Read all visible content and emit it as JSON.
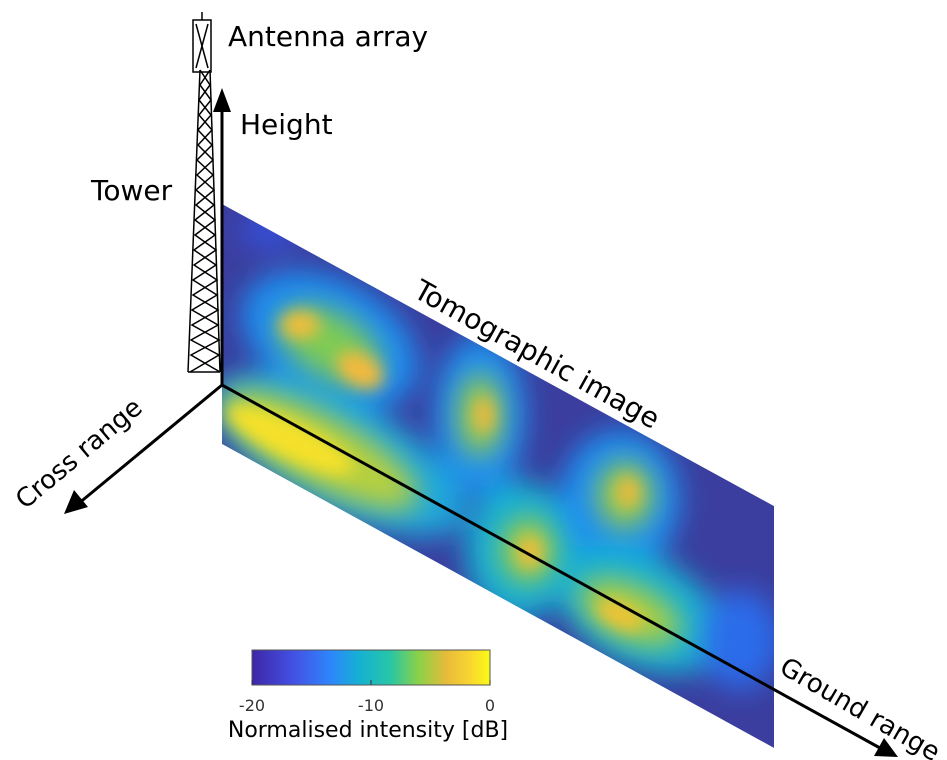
{
  "labels": {
    "antenna": "Antenna array",
    "height": "Height",
    "tower": "Tower",
    "tomographic": "Tomographic image",
    "cross_range": "Cross range",
    "ground_range": "Ground range"
  },
  "colorbar": {
    "title": "Normalised intensity [dB]",
    "ticks": [
      "-20",
      "-10",
      "0"
    ],
    "colors": [
      "#3e26a8",
      "#4352e6",
      "#2d86fb",
      "#15b1d3",
      "#26c6a7",
      "#8bd147",
      "#e8bb3a",
      "#f9d72f",
      "#f9fb15"
    ]
  },
  "image_colors": {
    "background": "#3b3e9e",
    "peak": "#f7e52a"
  }
}
